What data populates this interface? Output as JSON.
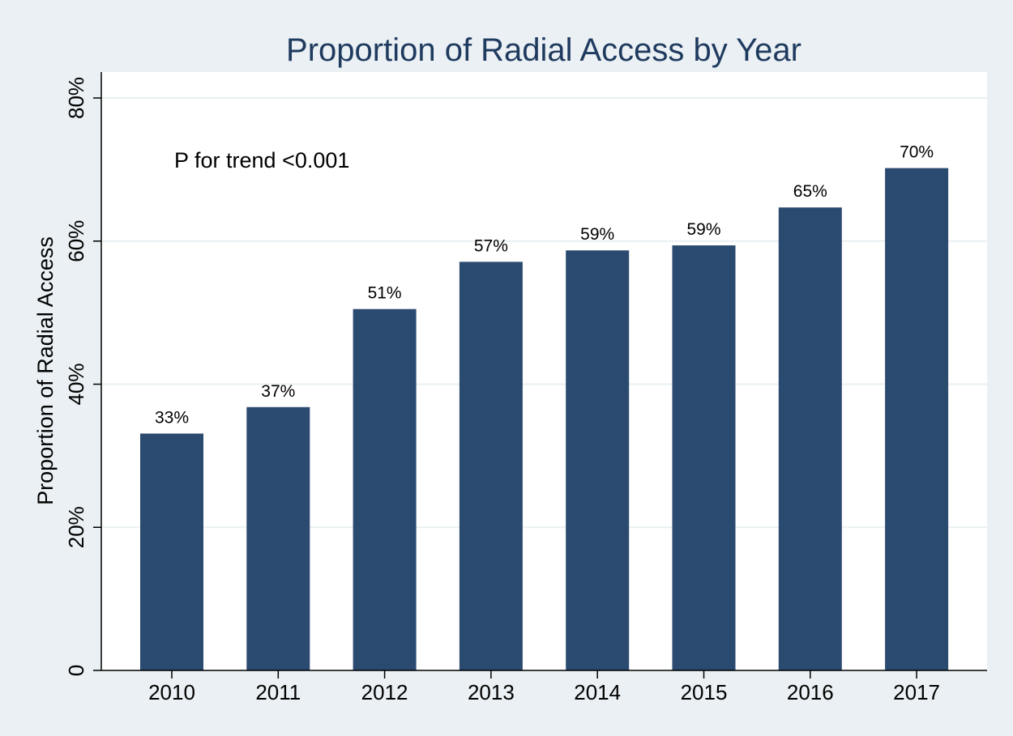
{
  "chart_data": {
    "type": "bar",
    "title": "Proportion of Radial Access by Year",
    "xlabel": "",
    "ylabel": "Proportion of Radial Access",
    "categories": [
      "2010",
      "2011",
      "2012",
      "2013",
      "2014",
      "2015",
      "2016",
      "2017"
    ],
    "values": [
      33.1,
      36.8,
      50.5,
      57.1,
      58.7,
      59.4,
      64.7,
      70.2
    ],
    "data_labels": [
      "33%",
      "37%",
      "51%",
      "57%",
      "59%",
      "59%",
      "65%",
      "70%"
    ],
    "ylim": [
      0,
      84
    ],
    "yticks": [
      0,
      20,
      40,
      60,
      80
    ],
    "ytick_labels": [
      "0",
      "20%",
      "40%",
      "60%",
      "80%"
    ],
    "annotation": "P for trend <0.001",
    "grid": true,
    "legend": "none",
    "colors": {
      "bar": "#2b4a6f",
      "title": "#1f3a5f",
      "outer_background": "#eaf0f3",
      "plot_background": "#ffffff",
      "gridline": "#eaf0f3",
      "axis": "#000000"
    }
  }
}
